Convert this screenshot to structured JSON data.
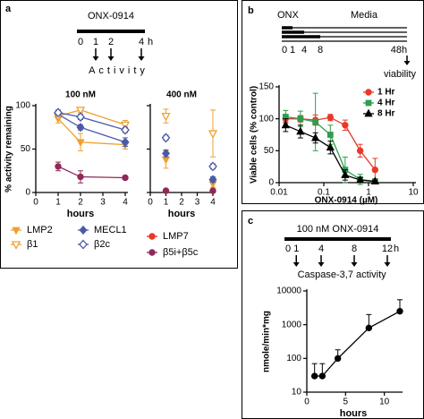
{
  "panel_labels": [
    "a",
    "b",
    "c"
  ],
  "timelines": [
    {
      "title": "ONX-0914",
      "ticks": [
        0,
        1,
        2,
        4
      ],
      "unit": "h",
      "readout": "Activity"
    },
    {
      "title": "ONX",
      "title2": "Media",
      "ticks": [
        0,
        1,
        4,
        8,
        48
      ],
      "unit": "h",
      "readout": "viability"
    },
    {
      "title": "100 nM ONX-0914",
      "ticks": [
        0,
        1,
        4,
        8,
        12
      ],
      "unit": "h",
      "readout": "Caspase-3,7 activity"
    }
  ],
  "chart_data": [
    {
      "type": "line",
      "title": "100 nM",
      "x_label": "hours",
      "y_label": "% activity remaining",
      "xlim": [
        0,
        4
      ],
      "xticks": [
        0,
        1,
        2,
        3,
        4
      ],
      "ylim": [
        0,
        100
      ],
      "yticks": [
        0,
        50,
        100
      ],
      "legend": "below",
      "x": [
        1,
        2,
        4
      ],
      "series": [
        {
          "name": "LMP2",
          "color": "#f0a030",
          "marker": "triangle-down",
          "values": [
            85,
            58,
            55
          ],
          "errors": [
            5,
            10,
            5
          ]
        },
        {
          "name": "MECL1",
          "color": "#4a5aa8",
          "marker": "diamond",
          "values": [
            90,
            75,
            58
          ],
          "errors": [
            3,
            3,
            5
          ]
        },
        {
          "name": "β1",
          "color": "#f0a030",
          "marker": "triangle-down-open",
          "values": [
            88,
            95,
            78
          ],
          "errors": [
            3,
            3,
            5
          ]
        },
        {
          "name": "β2c",
          "color": "#4a5aa8",
          "marker": "diamond-open",
          "values": [
            92,
            87,
            72
          ],
          "errors": [
            3,
            3,
            3
          ]
        },
        {
          "name": "LMP7",
          "color": "#e8382a",
          "marker": "circle",
          "values": [
            null,
            null,
            null
          ],
          "errors": [
            null,
            null,
            null
          ]
        },
        {
          "name": "β5i+β5c",
          "color": "#8e2a5a",
          "marker": "circle",
          "values": [
            30,
            18,
            17
          ],
          "errors": [
            5,
            7,
            2
          ]
        }
      ]
    },
    {
      "type": "scatter",
      "title": "400 nM",
      "x_label": "hours",
      "xlim": [
        0,
        4
      ],
      "xticks": [
        0,
        1,
        2,
        3,
        4
      ],
      "ylim": [
        0,
        100
      ],
      "yticks": [
        0,
        50,
        100
      ],
      "ytick_labels": false,
      "x": [
        1,
        4
      ],
      "series": [
        {
          "color": "#f0a030",
          "marker": "triangle-down",
          "values": [
            38,
            10
          ],
          "errors": [
            10,
            4
          ]
        },
        {
          "color": "#4a5aa8",
          "marker": "diamond",
          "values": [
            45,
            15
          ],
          "errors": [
            4,
            3
          ]
        },
        {
          "color": "#f0a030",
          "marker": "triangle-down-open",
          "values": [
            88,
            68
          ],
          "errors": [
            8,
            27
          ]
        },
        {
          "color": "#4a5aa8",
          "marker": "diamond-open",
          "values": [
            63,
            30
          ],
          "errors": [
            3,
            3
          ]
        },
        {
          "color": "#e8382a",
          "marker": "circle",
          "values": [
            2,
            2
          ],
          "errors": [
            1,
            1
          ]
        },
        {
          "color": "#8e2a5a",
          "marker": "circle",
          "values": [
            2,
            2
          ],
          "errors": [
            1,
            1
          ]
        }
      ]
    },
    {
      "type": "line",
      "x_label": "ONX-0914 (µM)",
      "y_label": "Viable cells (% control)",
      "xscale": "log",
      "xlim": [
        0.01,
        10
      ],
      "xticks": [
        0.01,
        0.1,
        1,
        10
      ],
      "ylim": [
        0,
        150
      ],
      "yticks": [
        0,
        50,
        100,
        150
      ],
      "legend": "upper right",
      "x": [
        0.014,
        0.03,
        0.065,
        0.14,
        0.3,
        0.65,
        1.4
      ],
      "series": [
        {
          "name": "1 Hr",
          "color": "#e8382a",
          "marker": "circle",
          "values": [
            100,
            100,
            98,
            102,
            90,
            50,
            20
          ],
          "errors": [
            5,
            5,
            8,
            5,
            8,
            10,
            18
          ]
        },
        {
          "name": "4 Hr",
          "color": "#2e9e4e",
          "marker": "square",
          "values": [
            103,
            100,
            95,
            75,
            20,
            5,
            2
          ],
          "errors": [
            10,
            12,
            45,
            15,
            20,
            8,
            2
          ]
        },
        {
          "name": "8 Hr",
          "color": "#000000",
          "marker": "triangle-up",
          "values": [
            90,
            80,
            70,
            55,
            12,
            4,
            2
          ],
          "errors": [
            10,
            10,
            8,
            10,
            8,
            4,
            2
          ]
        }
      ]
    },
    {
      "type": "line",
      "x_label": "hours",
      "y_label": "nmole/min*mg",
      "yscale": "log",
      "xlim": [
        0,
        12
      ],
      "xticks": [
        0,
        5,
        10
      ],
      "ylim": [
        10,
        10000
      ],
      "yticks": [
        10,
        100,
        1000,
        10000
      ],
      "errorbars": "upper",
      "x": [
        1,
        2,
        4,
        8,
        12
      ],
      "series": [
        {
          "color": "#000000",
          "marker": "circle",
          "values": [
            30,
            30,
            100,
            800,
            2500
          ],
          "errors": [
            40,
            40,
            80,
            1200,
            3000
          ]
        }
      ]
    }
  ]
}
